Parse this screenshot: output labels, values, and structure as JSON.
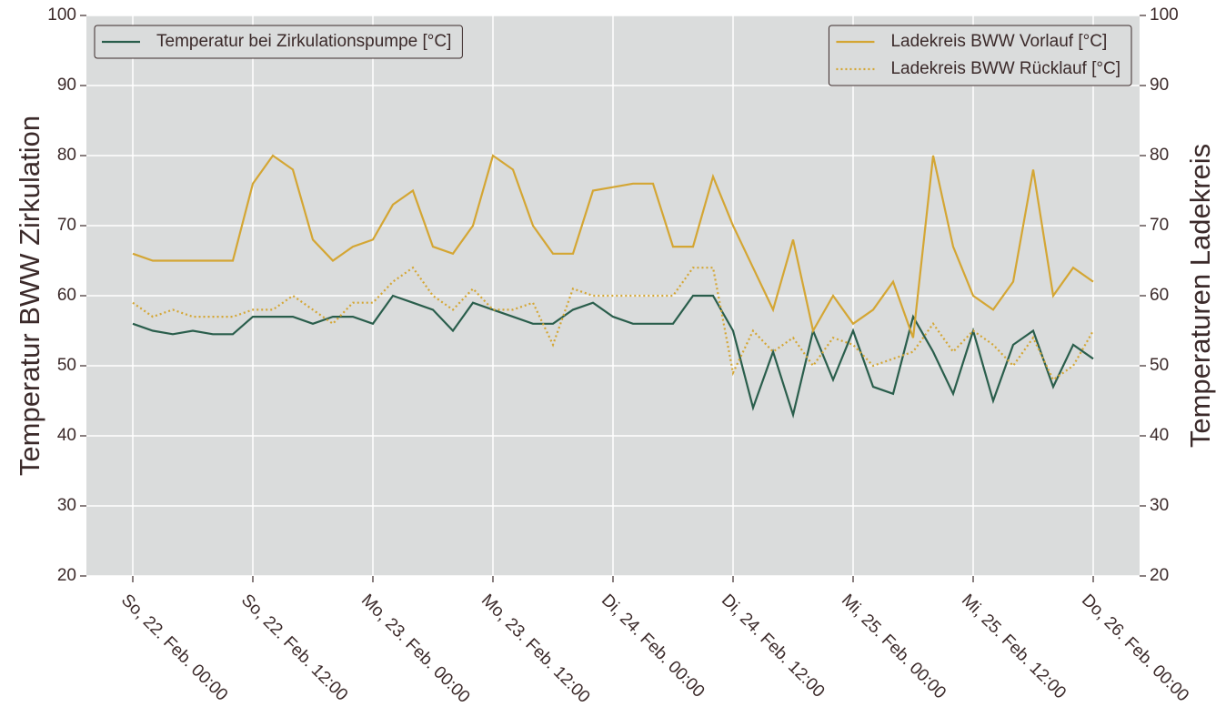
{
  "chart_data": {
    "type": "line",
    "ylabel": "Temperatur BWW Zirkulation",
    "y2label": "Temperaturen Ladekreis",
    "x": [
      "So, 22. Feb. 00:00",
      "So, 22. Feb. 02:00",
      "So, 22. Feb. 04:00",
      "So, 22. Feb. 06:00",
      "So, 22. Feb. 08:00",
      "So, 22. Feb. 10:00",
      "So, 22. Feb. 12:00",
      "So, 22. Feb. 14:00",
      "So, 22. Feb. 16:00",
      "So, 22. Feb. 18:00",
      "So, 22. Feb. 20:00",
      "So, 22. Feb. 22:00",
      "Mo, 23. Feb. 00:00",
      "Mo, 23. Feb. 02:00",
      "Mo, 23. Feb. 04:00",
      "Mo, 23. Feb. 06:00",
      "Mo, 23. Feb. 08:00",
      "Mo, 23. Feb. 10:00",
      "Mo, 23. Feb. 12:00",
      "Mo, 23. Feb. 14:00",
      "Mo, 23. Feb. 16:00",
      "Mo, 23. Feb. 18:00",
      "Mo, 23. Feb. 20:00",
      "Mo, 23. Feb. 22:00",
      "Di, 24. Feb. 00:00",
      "Di, 24. Feb. 02:00",
      "Di, 24. Feb. 04:00",
      "Di, 24. Feb. 06:00",
      "Di, 24. Feb. 08:00",
      "Di, 24. Feb. 10:00",
      "Di, 24. Feb. 12:00",
      "Di, 24. Feb. 14:00",
      "Di, 24. Feb. 16:00",
      "Di, 24. Feb. 18:00",
      "Di, 24. Feb. 20:00",
      "Di, 24. Feb. 22:00",
      "Mi, 25. Feb. 00:00",
      "Mi, 25. Feb. 02:00",
      "Mi, 25. Feb. 04:00",
      "Mi, 25. Feb. 06:00",
      "Mi, 25. Feb. 08:00",
      "Mi, 25. Feb. 10:00",
      "Mi, 25. Feb. 12:00",
      "Mi, 25. Feb. 14:00",
      "Mi, 25. Feb. 16:00",
      "Mi, 25. Feb. 18:00",
      "Mi, 25. Feb. 20:00",
      "Mi, 25. Feb. 22:00",
      "Do, 26. Feb. 00:00"
    ],
    "xticks": [
      "So, 22. Feb. 00:00",
      "So, 22. Feb. 12:00",
      "Mo, 23. Feb. 00:00",
      "Mo, 23. Feb. 12:00",
      "Di, 24. Feb. 00:00",
      "Di, 24. Feb. 12:00",
      "Mi, 25. Feb. 00:00",
      "Mi, 25. Feb. 12:00",
      "Do, 26. Feb. 00:00"
    ],
    "ylim": [
      20,
      100
    ],
    "yticks": [
      20,
      30,
      40,
      50,
      60,
      70,
      80,
      90,
      100
    ],
    "y2lim": [
      20,
      100
    ],
    "y2ticks": [
      20,
      30,
      40,
      50,
      60,
      70,
      80,
      90,
      100
    ],
    "grid": true,
    "legend": {
      "y": "upper left",
      "y2": "upper right"
    },
    "series": [
      {
        "name": "Temperatur bei Zirkulationspumpe [°C]",
        "color": "#2a5e4c",
        "linestyle": "solid",
        "axis": "y",
        "values": [
          56,
          55,
          54.5,
          55,
          54.5,
          54.5,
          57,
          57,
          57,
          56,
          57,
          57,
          56,
          60,
          59,
          58,
          55,
          59,
          58,
          57,
          56,
          56,
          58,
          59,
          57,
          56,
          56,
          56,
          60,
          60,
          55,
          44,
          52,
          43,
          55,
          48,
          55,
          47,
          46,
          57,
          52,
          46,
          55,
          45,
          53,
          55,
          47,
          53,
          51
        ]
      },
      {
        "name": "Ladekreis BWW Vorlauf [°C]",
        "color": "#d4a634",
        "linestyle": "solid",
        "axis": "y2",
        "values": [
          66,
          65,
          65,
          65,
          65,
          65,
          76,
          80,
          78,
          68,
          65,
          67,
          68,
          73,
          75,
          67,
          66,
          70,
          80,
          78,
          70,
          66,
          66,
          75,
          75.5,
          76,
          76,
          67,
          67,
          77,
          70,
          64,
          58,
          68,
          55,
          60,
          56,
          58,
          62,
          54,
          80,
          67,
          60,
          58,
          62,
          78,
          60,
          64,
          62
        ]
      },
      {
        "name": "Ladekreis BWW Rücklauf [°C]",
        "color": "#d4a634",
        "linestyle": "dotted",
        "axis": "y2",
        "values": [
          59,
          57,
          58,
          57,
          57,
          57,
          58,
          58,
          60,
          58,
          56,
          59,
          59,
          62,
          64,
          60,
          58,
          61,
          58,
          58,
          59,
          53,
          61,
          60,
          60,
          60,
          60,
          60,
          64,
          64,
          49,
          55,
          52,
          54,
          50,
          54,
          53,
          50,
          51,
          52,
          56,
          52,
          55,
          53,
          50,
          54,
          48,
          50,
          55
        ]
      }
    ]
  }
}
